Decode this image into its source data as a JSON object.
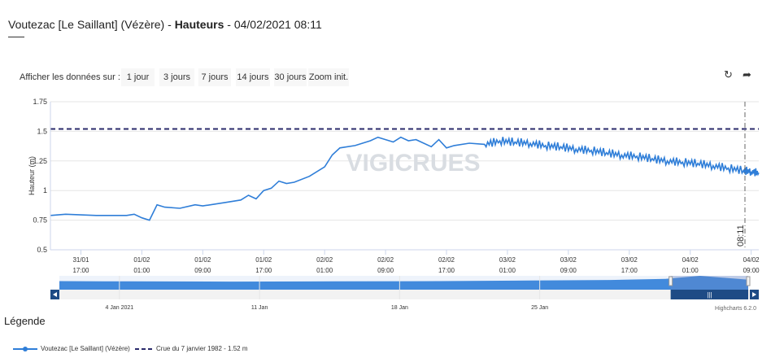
{
  "header": {
    "station": "Voutezac [Le Saillant] (Vézère)",
    "separator": " - ",
    "measure": "Hauteurs",
    "datetime": " - 04/02/2021 08:11"
  },
  "toolbar": {
    "label": "Afficher les données sur :",
    "ranges": [
      "1 jour",
      "3 jours",
      "7 jours",
      "14 jours",
      "30 jours",
      "Zoom init."
    ],
    "refresh_icon": "refresh-icon",
    "export_icon": "share-arrow-icon"
  },
  "watermark": "VIGICRUES",
  "credits": "Highcharts 6.2.0",
  "colors": {
    "series": "#2f7ed8",
    "threshold": "#2b2b6b",
    "navigator_mask": "#1e4b85",
    "grid": "#e6e6e6"
  },
  "chart_data": {
    "type": "line",
    "ylabel": "Hauteur (m)",
    "ylim": [
      0.5,
      1.75
    ],
    "yticks": [
      0.5,
      0.75,
      1,
      1.25,
      1.5,
      1.75
    ],
    "ytick_labels": [
      "0.5",
      "0.75",
      "1",
      "1.25",
      "1.5",
      "1.75"
    ],
    "x_range": [
      "31/01 13:00",
      "04/02 10:00"
    ],
    "x_ticks": [
      {
        "x": "31/01 17:00",
        "label": [
          "31/01",
          "17:00"
        ]
      },
      {
        "x": "01/02 01:00",
        "label": [
          "01/02",
          "01:00"
        ]
      },
      {
        "x": "01/02 09:00",
        "label": [
          "01/02",
          "09:00"
        ]
      },
      {
        "x": "01/02 17:00",
        "label": [
          "01/02",
          "17:00"
        ]
      },
      {
        "x": "02/02 01:00",
        "label": [
          "02/02",
          "01:00"
        ]
      },
      {
        "x": "02/02 09:00",
        "label": [
          "02/02",
          "09:00"
        ]
      },
      {
        "x": "02/02 17:00",
        "label": [
          "02/02",
          "17:00"
        ]
      },
      {
        "x": "03/02 01:00",
        "label": [
          "03/02",
          "01:00"
        ]
      },
      {
        "x": "03/02 09:00",
        "label": [
          "03/02",
          "09:00"
        ]
      },
      {
        "x": "03/02 17:00",
        "label": [
          "03/02",
          "17:00"
        ]
      },
      {
        "x": "04/02 01:00",
        "label": [
          "04/02",
          "01:00"
        ]
      },
      {
        "x": "04/02 09:00",
        "label": [
          "04/02",
          "09:00"
        ]
      }
    ],
    "current_time_label": "08:11",
    "series": [
      {
        "name": "Voutezac [Le Saillant] (Vézère)",
        "points": [
          [
            "31/01 13:00",
            0.79
          ],
          [
            "31/01 15:00",
            0.8
          ],
          [
            "31/01 19:00",
            0.79
          ],
          [
            "31/01 23:00",
            0.79
          ],
          [
            "01/02 00:00",
            0.8
          ],
          [
            "01/02 01:00",
            0.77
          ],
          [
            "01/02 02:00",
            0.75
          ],
          [
            "01/02 03:00",
            0.88
          ],
          [
            "01/02 04:00",
            0.86
          ],
          [
            "01/02 06:00",
            0.85
          ],
          [
            "01/02 08:00",
            0.88
          ],
          [
            "01/02 09:00",
            0.87
          ],
          [
            "01/02 12:00",
            0.9
          ],
          [
            "01/02 14:00",
            0.92
          ],
          [
            "01/02 15:00",
            0.96
          ],
          [
            "01/02 16:00",
            0.93
          ],
          [
            "01/02 17:00",
            1.0
          ],
          [
            "01/02 18:00",
            1.02
          ],
          [
            "01/02 19:00",
            1.08
          ],
          [
            "01/02 20:00",
            1.06
          ],
          [
            "01/02 21:00",
            1.07
          ],
          [
            "01/02 23:00",
            1.12
          ],
          [
            "02/02 01:00",
            1.2
          ],
          [
            "02/02 02:00",
            1.3
          ],
          [
            "02/02 03:00",
            1.36
          ],
          [
            "02/02 05:00",
            1.38
          ],
          [
            "02/02 07:00",
            1.42
          ],
          [
            "02/02 08:00",
            1.45
          ],
          [
            "02/02 09:00",
            1.43
          ],
          [
            "02/02 10:00",
            1.41
          ],
          [
            "02/02 11:00",
            1.45
          ],
          [
            "02/02 12:00",
            1.42
          ],
          [
            "02/02 13:00",
            1.43
          ],
          [
            "02/02 15:00",
            1.37
          ],
          [
            "02/02 16:00",
            1.43
          ],
          [
            "02/02 17:00",
            1.36
          ],
          [
            "02/02 18:00",
            1.38
          ],
          [
            "02/02 20:00",
            1.4
          ],
          [
            "02/02 22:00",
            1.39
          ],
          [
            "03/02 00:00",
            1.42
          ],
          [
            "03/02 02:00",
            1.41
          ],
          [
            "03/02 04:00",
            1.4
          ],
          [
            "03/02 06:00",
            1.38
          ],
          [
            "03/02 08:00",
            1.37
          ],
          [
            "03/02 10:00",
            1.35
          ],
          [
            "03/02 12:00",
            1.34
          ],
          [
            "03/02 14:00",
            1.32
          ],
          [
            "03/02 16:00",
            1.3
          ],
          [
            "03/02 18:00",
            1.29
          ],
          [
            "03/02 20:00",
            1.27
          ],
          [
            "03/02 22:00",
            1.25
          ],
          [
            "04/02 00:00",
            1.24
          ],
          [
            "04/02 02:00",
            1.23
          ],
          [
            "04/02 04:00",
            1.21
          ],
          [
            "04/02 06:00",
            1.19
          ],
          [
            "04/02 08:00",
            1.17
          ],
          [
            "04/02 09:00",
            1.16
          ],
          [
            "04/02 10:00",
            1.15
          ]
        ]
      },
      {
        "name": "Crue du 7 janvier 1982 - 1.52 m",
        "value": 1.52,
        "style": "dashed"
      }
    ],
    "navigator": {
      "x_range": [
        "01/01",
        "04/02"
      ],
      "ticks": [
        {
          "x": "04/01",
          "label": "4 Jan 2021"
        },
        {
          "x": "11/01",
          "label": "11 Jan"
        },
        {
          "x": "18/01",
          "label": "18 Jan"
        },
        {
          "x": "25/01",
          "label": "25 Jan"
        }
      ],
      "selected": [
        "31/01 13:00",
        "04/02 10:00"
      ]
    }
  },
  "legend": {
    "title": "Légende",
    "items": [
      "Voutezac [Le Saillant] (Vézère)",
      "Crue du 7 janvier 1982 - 1.52 m"
    ]
  }
}
